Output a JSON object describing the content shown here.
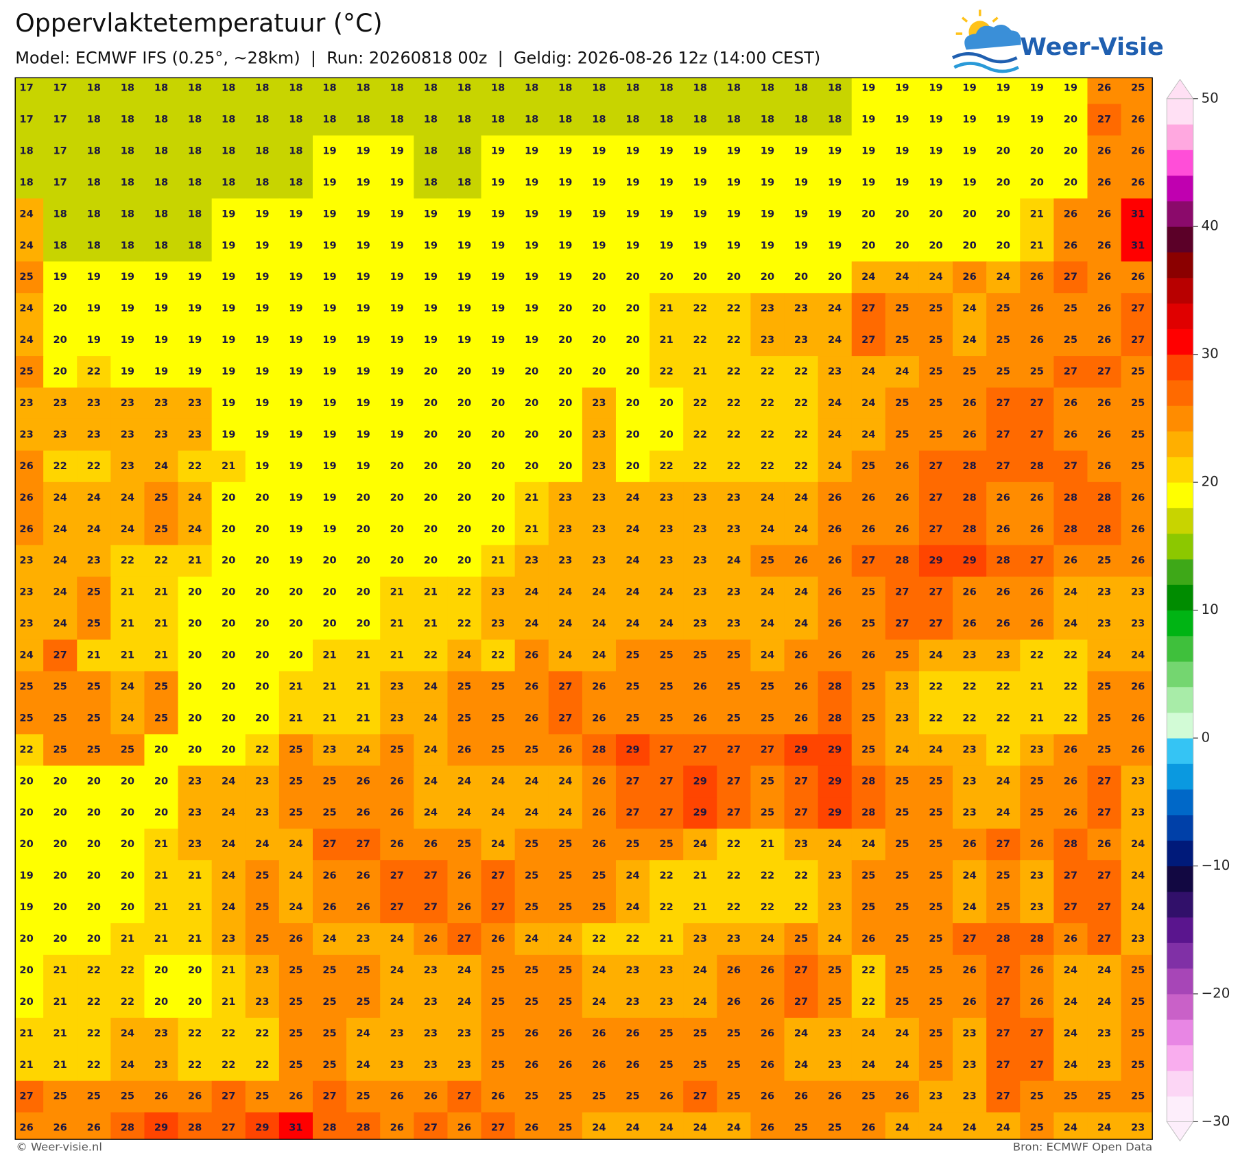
{
  "header": {
    "title": "Oppervlaktetemperatuur (°C)",
    "subtitle": "Model: ECMWF IFS (0.25°, ~28km)  |  Run: 20260818 00z  |  Geldig: 2026-08-26 12z (14:00 CEST)"
  },
  "logo": {
    "text": "Weer-Visie"
  },
  "grid": {
    "rows": [
      [
        17,
        17,
        18,
        18,
        18,
        18,
        18,
        18,
        18,
        18,
        18,
        18,
        18,
        18,
        18,
        18,
        18,
        18,
        18,
        18,
        18,
        18,
        18,
        18,
        18,
        19,
        19,
        19,
        19,
        19,
        19,
        19,
        26,
        25
      ],
      [
        17,
        17,
        18,
        18,
        18,
        18,
        18,
        18,
        18,
        18,
        18,
        18,
        18,
        18,
        18,
        18,
        18,
        18,
        18,
        18,
        18,
        18,
        18,
        18,
        18,
        19,
        19,
        19,
        19,
        19,
        19,
        20,
        27,
        26
      ],
      [
        18,
        17,
        18,
        18,
        18,
        18,
        18,
        18,
        18,
        19,
        19,
        19,
        18,
        18,
        19,
        19,
        19,
        19,
        19,
        19,
        19,
        19,
        19,
        19,
        19,
        19,
        19,
        19,
        19,
        20,
        20,
        20,
        26,
        26
      ],
      [
        18,
        17,
        18,
        18,
        18,
        18,
        18,
        18,
        18,
        19,
        19,
        19,
        18,
        18,
        19,
        19,
        19,
        19,
        19,
        19,
        19,
        19,
        19,
        19,
        19,
        19,
        19,
        19,
        19,
        20,
        20,
        20,
        26,
        26
      ],
      [
        24,
        18,
        18,
        18,
        18,
        18,
        19,
        19,
        19,
        19,
        19,
        19,
        19,
        19,
        19,
        19,
        19,
        19,
        19,
        19,
        19,
        19,
        19,
        19,
        19,
        20,
        20,
        20,
        20,
        20,
        21,
        26,
        26,
        31
      ],
      [
        24,
        18,
        18,
        18,
        18,
        18,
        19,
        19,
        19,
        19,
        19,
        19,
        19,
        19,
        19,
        19,
        19,
        19,
        19,
        19,
        19,
        19,
        19,
        19,
        19,
        20,
        20,
        20,
        20,
        20,
        21,
        26,
        26,
        31
      ],
      [
        25,
        19,
        19,
        19,
        19,
        19,
        19,
        19,
        19,
        19,
        19,
        19,
        19,
        19,
        19,
        19,
        19,
        20,
        20,
        20,
        20,
        20,
        20,
        20,
        20,
        24,
        24,
        24,
        26,
        24,
        26,
        27,
        26,
        26
      ],
      [
        24,
        20,
        19,
        19,
        19,
        19,
        19,
        19,
        19,
        19,
        19,
        19,
        19,
        19,
        19,
        19,
        20,
        20,
        20,
        21,
        22,
        22,
        23,
        23,
        24,
        27,
        25,
        25,
        24,
        25,
        26,
        25,
        26,
        27
      ],
      [
        24,
        20,
        19,
        19,
        19,
        19,
        19,
        19,
        19,
        19,
        19,
        19,
        19,
        19,
        19,
        19,
        20,
        20,
        20,
        21,
        22,
        22,
        23,
        23,
        24,
        27,
        25,
        25,
        24,
        25,
        26,
        25,
        26,
        27
      ],
      [
        25,
        20,
        22,
        19,
        19,
        19,
        19,
        19,
        19,
        19,
        19,
        19,
        20,
        20,
        19,
        20,
        20,
        20,
        20,
        22,
        21,
        22,
        22,
        22,
        23,
        24,
        24,
        25,
        25,
        25,
        25,
        27,
        27,
        25
      ],
      [
        23,
        23,
        23,
        23,
        23,
        23,
        19,
        19,
        19,
        19,
        19,
        19,
        20,
        20,
        20,
        20,
        20,
        23,
        20,
        20,
        22,
        22,
        22,
        22,
        24,
        24,
        25,
        25,
        26,
        27,
        27,
        26,
        26,
        25
      ],
      [
        23,
        23,
        23,
        23,
        23,
        23,
        19,
        19,
        19,
        19,
        19,
        19,
        20,
        20,
        20,
        20,
        20,
        23,
        20,
        20,
        22,
        22,
        22,
        22,
        24,
        24,
        25,
        25,
        26,
        27,
        27,
        26,
        26,
        25
      ],
      [
        26,
        22,
        22,
        23,
        24,
        22,
        21,
        19,
        19,
        19,
        19,
        20,
        20,
        20,
        20,
        20,
        20,
        23,
        20,
        22,
        22,
        22,
        22,
        22,
        24,
        25,
        26,
        27,
        28,
        27,
        28,
        27,
        26,
        25
      ],
      [
        26,
        24,
        24,
        24,
        25,
        24,
        20,
        20,
        19,
        19,
        20,
        20,
        20,
        20,
        20,
        21,
        23,
        23,
        24,
        23,
        23,
        23,
        24,
        24,
        26,
        26,
        26,
        27,
        28,
        26,
        26,
        28,
        28,
        26
      ],
      [
        26,
        24,
        24,
        24,
        25,
        24,
        20,
        20,
        19,
        19,
        20,
        20,
        20,
        20,
        20,
        21,
        23,
        23,
        24,
        23,
        23,
        23,
        24,
        24,
        26,
        26,
        26,
        27,
        28,
        26,
        26,
        28,
        28,
        26
      ],
      [
        23,
        24,
        23,
        22,
        22,
        21,
        20,
        20,
        19,
        20,
        20,
        20,
        20,
        20,
        21,
        23,
        23,
        23,
        24,
        23,
        23,
        24,
        25,
        26,
        26,
        27,
        28,
        29,
        29,
        28,
        27,
        26,
        25,
        26
      ],
      [
        23,
        24,
        25,
        21,
        21,
        20,
        20,
        20,
        20,
        20,
        20,
        21,
        21,
        22,
        23,
        24,
        24,
        24,
        24,
        24,
        23,
        23,
        24,
        24,
        26,
        25,
        27,
        27,
        26,
        26,
        26,
        24,
        23,
        23
      ],
      [
        23,
        24,
        25,
        21,
        21,
        20,
        20,
        20,
        20,
        20,
        20,
        21,
        21,
        22,
        23,
        24,
        24,
        24,
        24,
        24,
        23,
        23,
        24,
        24,
        26,
        25,
        27,
        27,
        26,
        26,
        26,
        24,
        23,
        23
      ],
      [
        24,
        27,
        21,
        21,
        21,
        20,
        20,
        20,
        20,
        21,
        21,
        21,
        22,
        24,
        22,
        26,
        24,
        24,
        25,
        25,
        25,
        25,
        24,
        26,
        26,
        26,
        25,
        24,
        23,
        23,
        22,
        22,
        24,
        24
      ],
      [
        25,
        25,
        25,
        24,
        25,
        20,
        20,
        20,
        21,
        21,
        21,
        23,
        24,
        25,
        25,
        26,
        27,
        26,
        25,
        25,
        26,
        25,
        25,
        26,
        28,
        25,
        23,
        22,
        22,
        22,
        21,
        22,
        25,
        26
      ],
      [
        25,
        25,
        25,
        24,
        25,
        20,
        20,
        20,
        21,
        21,
        21,
        23,
        24,
        25,
        25,
        26,
        27,
        26,
        25,
        25,
        26,
        25,
        25,
        26,
        28,
        25,
        23,
        22,
        22,
        22,
        21,
        22,
        25,
        26
      ],
      [
        22,
        25,
        25,
        25,
        20,
        20,
        20,
        22,
        25,
        23,
        24,
        25,
        24,
        26,
        25,
        25,
        26,
        28,
        29,
        27,
        27,
        27,
        27,
        29,
        29,
        25,
        24,
        24,
        23,
        22,
        23,
        26,
        25,
        26
      ],
      [
        20,
        20,
        20,
        20,
        20,
        23,
        24,
        23,
        25,
        25,
        26,
        26,
        24,
        24,
        24,
        24,
        24,
        26,
        27,
        27,
        29,
        27,
        25,
        27,
        29,
        28,
        25,
        25,
        23,
        24,
        25,
        26,
        27,
        23
      ],
      [
        20,
        20,
        20,
        20,
        20,
        23,
        24,
        23,
        25,
        25,
        26,
        26,
        24,
        24,
        24,
        24,
        24,
        26,
        27,
        27,
        29,
        27,
        25,
        27,
        29,
        28,
        25,
        25,
        23,
        24,
        25,
        26,
        27,
        23
      ],
      [
        20,
        20,
        20,
        20,
        21,
        23,
        24,
        24,
        24,
        27,
        27,
        26,
        26,
        25,
        24,
        25,
        25,
        26,
        25,
        25,
        24,
        22,
        21,
        23,
        24,
        24,
        25,
        25,
        26,
        27,
        26,
        28,
        26,
        24
      ],
      [
        19,
        20,
        20,
        20,
        21,
        21,
        24,
        25,
        24,
        26,
        26,
        27,
        27,
        26,
        27,
        25,
        25,
        25,
        24,
        22,
        21,
        22,
        22,
        22,
        23,
        25,
        25,
        25,
        24,
        25,
        23,
        27,
        27,
        24
      ],
      [
        19,
        20,
        20,
        20,
        21,
        21,
        24,
        25,
        24,
        26,
        26,
        27,
        27,
        26,
        27,
        25,
        25,
        25,
        24,
        22,
        21,
        22,
        22,
        22,
        23,
        25,
        25,
        25,
        24,
        25,
        23,
        27,
        27,
        24
      ],
      [
        20,
        20,
        20,
        21,
        21,
        21,
        23,
        25,
        26,
        24,
        23,
        24,
        26,
        27,
        26,
        24,
        24,
        22,
        22,
        21,
        23,
        23,
        24,
        25,
        24,
        26,
        25,
        25,
        27,
        28,
        28,
        26,
        27,
        23
      ],
      [
        20,
        21,
        22,
        22,
        20,
        20,
        21,
        23,
        25,
        25,
        25,
        24,
        23,
        24,
        25,
        25,
        25,
        24,
        23,
        23,
        24,
        26,
        26,
        27,
        25,
        22,
        25,
        25,
        26,
        27,
        26,
        24,
        24,
        25
      ],
      [
        20,
        21,
        22,
        22,
        20,
        20,
        21,
        23,
        25,
        25,
        25,
        24,
        23,
        24,
        25,
        25,
        25,
        24,
        23,
        23,
        24,
        26,
        26,
        27,
        25,
        22,
        25,
        25,
        26,
        27,
        26,
        24,
        24,
        25
      ],
      [
        21,
        21,
        22,
        24,
        23,
        22,
        22,
        22,
        25,
        25,
        24,
        23,
        23,
        23,
        25,
        26,
        26,
        26,
        26,
        25,
        25,
        25,
        26,
        24,
        23,
        24,
        24,
        25,
        23,
        27,
        27,
        24,
        23,
        25
      ],
      [
        21,
        21,
        22,
        24,
        23,
        22,
        22,
        22,
        25,
        25,
        24,
        23,
        23,
        23,
        25,
        26,
        26,
        26,
        26,
        25,
        25,
        25,
        26,
        24,
        23,
        24,
        24,
        25,
        23,
        27,
        27,
        24,
        23,
        25
      ],
      [
        27,
        25,
        25,
        25,
        26,
        26,
        27,
        25,
        26,
        27,
        25,
        26,
        26,
        27,
        26,
        25,
        25,
        25,
        25,
        26,
        27,
        25,
        26,
        26,
        26,
        25,
        26,
        23,
        23,
        27,
        25,
        25,
        25,
        25
      ],
      [
        26,
        26,
        26,
        28,
        29,
        28,
        27,
        29,
        31,
        28,
        28,
        26,
        27,
        26,
        27,
        26,
        25,
        24,
        24,
        24,
        24,
        24,
        26,
        25,
        25,
        26,
        24,
        24,
        24,
        24,
        25,
        24,
        24,
        23
      ]
    ]
  },
  "colorbar": {
    "colors": [
      "#fdeefb",
      "#fcd6f5",
      "#f9adee",
      "#e886e4",
      "#c961c8",
      "#a746b7",
      "#8030a6",
      "#5a158e",
      "#31106a",
      "#120842",
      "#001a7a",
      "#0040a8",
      "#0068c8",
      "#0a99e0",
      "#35c4f4",
      "#d2fbd6",
      "#a8eca8",
      "#74d670",
      "#3fc03c",
      "#00b414",
      "#008c00",
      "#3ea818",
      "#8cc800",
      "#c8d400",
      "#ffff00",
      "#ffd500",
      "#ffaf00",
      "#ff8c00",
      "#ff6a00",
      "#ff4500",
      "#ff0000",
      "#e00000",
      "#b80000",
      "#8b0000",
      "#5b0028",
      "#8b0a6b",
      "#c000b0",
      "#ff4ed8",
      "#ffa8e0",
      "#ffe0f4"
    ],
    "ticks": [
      {
        "value": -30,
        "label": "−30"
      },
      {
        "value": -20,
        "label": "−20"
      },
      {
        "value": -10,
        "label": "−10"
      },
      0,
      10,
      20,
      30,
      40,
      50
    ]
  },
  "footer": {
    "left": "© Weer-visie.nl",
    "right": "Bron: ECMWF Open Data"
  }
}
